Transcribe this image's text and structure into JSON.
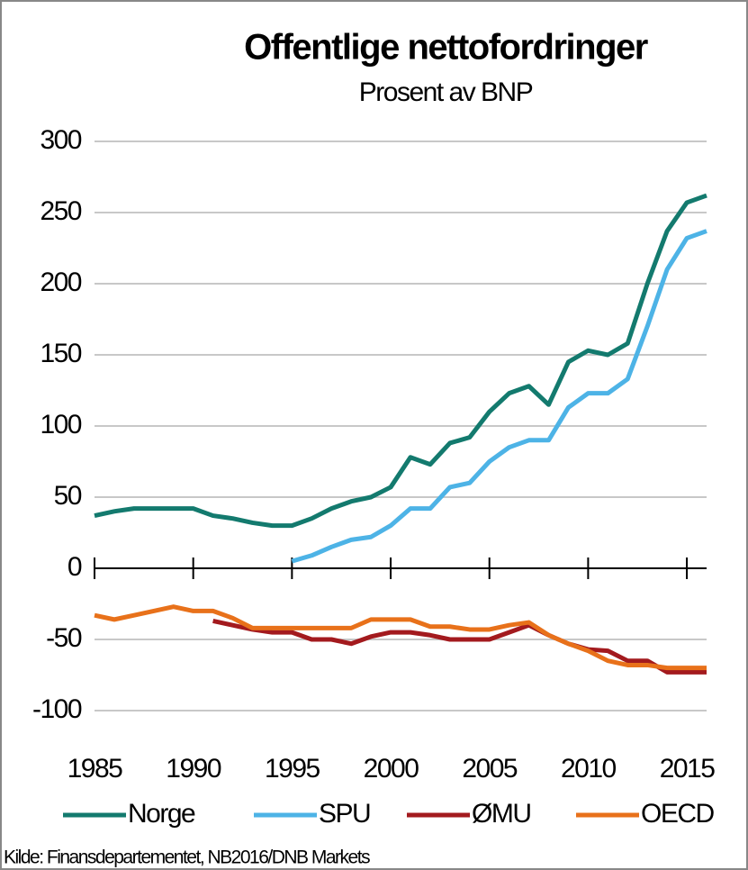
{
  "chart_data": {
    "type": "line",
    "title": "Offentlige nettofordringer",
    "subtitle": "Prosent av BNP",
    "source": "Kilde: Finansdepartementet,   NB2016/DNB Markets",
    "x": [
      1985,
      1986,
      1987,
      1988,
      1989,
      1990,
      1991,
      1992,
      1993,
      1994,
      1995,
      1996,
      1997,
      1998,
      1999,
      2000,
      2001,
      2002,
      2003,
      2004,
      2005,
      2006,
      2007,
      2008,
      2009,
      2010,
      2011,
      2012,
      2013,
      2014,
      2015,
      2016
    ],
    "series": [
      {
        "name": "Norge",
        "color": "#137a6e",
        "values": [
          37,
          40,
          42,
          42,
          42,
          42,
          37,
          35,
          32,
          30,
          30,
          35,
          42,
          47,
          50,
          57,
          78,
          73,
          88,
          92,
          110,
          123,
          128,
          115,
          145,
          153,
          150,
          158,
          200,
          237,
          257,
          262
        ]
      },
      {
        "name": "SPU",
        "color": "#4db3e6",
        "values": [
          null,
          null,
          null,
          null,
          null,
          null,
          null,
          null,
          null,
          null,
          5,
          9,
          15,
          20,
          22,
          30,
          42,
          42,
          57,
          60,
          75,
          85,
          90,
          90,
          113,
          123,
          123,
          133,
          170,
          210,
          232,
          237
        ]
      },
      {
        "name": "ØMU",
        "color": "#a31a1e",
        "values": [
          null,
          null,
          null,
          null,
          null,
          null,
          -37,
          -40,
          -43,
          -45,
          -45,
          -50,
          -50,
          -53,
          -48,
          -45,
          -45,
          -47,
          -50,
          -50,
          -50,
          -45,
          -40,
          -47,
          -53,
          -57,
          -58,
          -65,
          -65,
          -73,
          -73,
          -73
        ]
      },
      {
        "name": "OECD",
        "color": "#e8711a",
        "values": [
          -33,
          -36,
          -33,
          -30,
          -27,
          -30,
          -30,
          -35,
          -42,
          -42,
          -42,
          -42,
          -42,
          -42,
          -36,
          -36,
          -36,
          -41,
          -41,
          -43,
          -43,
          -40,
          -38,
          -47,
          -53,
          -58,
          -65,
          -68,
          -68,
          -70,
          -70,
          -70
        ]
      }
    ],
    "xlim": [
      1985,
      2016
    ],
    "xticks": [
      1985,
      1990,
      1995,
      2000,
      2005,
      2010,
      2015
    ],
    "ylim": [
      -100,
      300
    ],
    "yticks": [
      -100,
      -50,
      0,
      50,
      100,
      150,
      200,
      250,
      300
    ],
    "grid": true,
    "legend": "bottom"
  }
}
